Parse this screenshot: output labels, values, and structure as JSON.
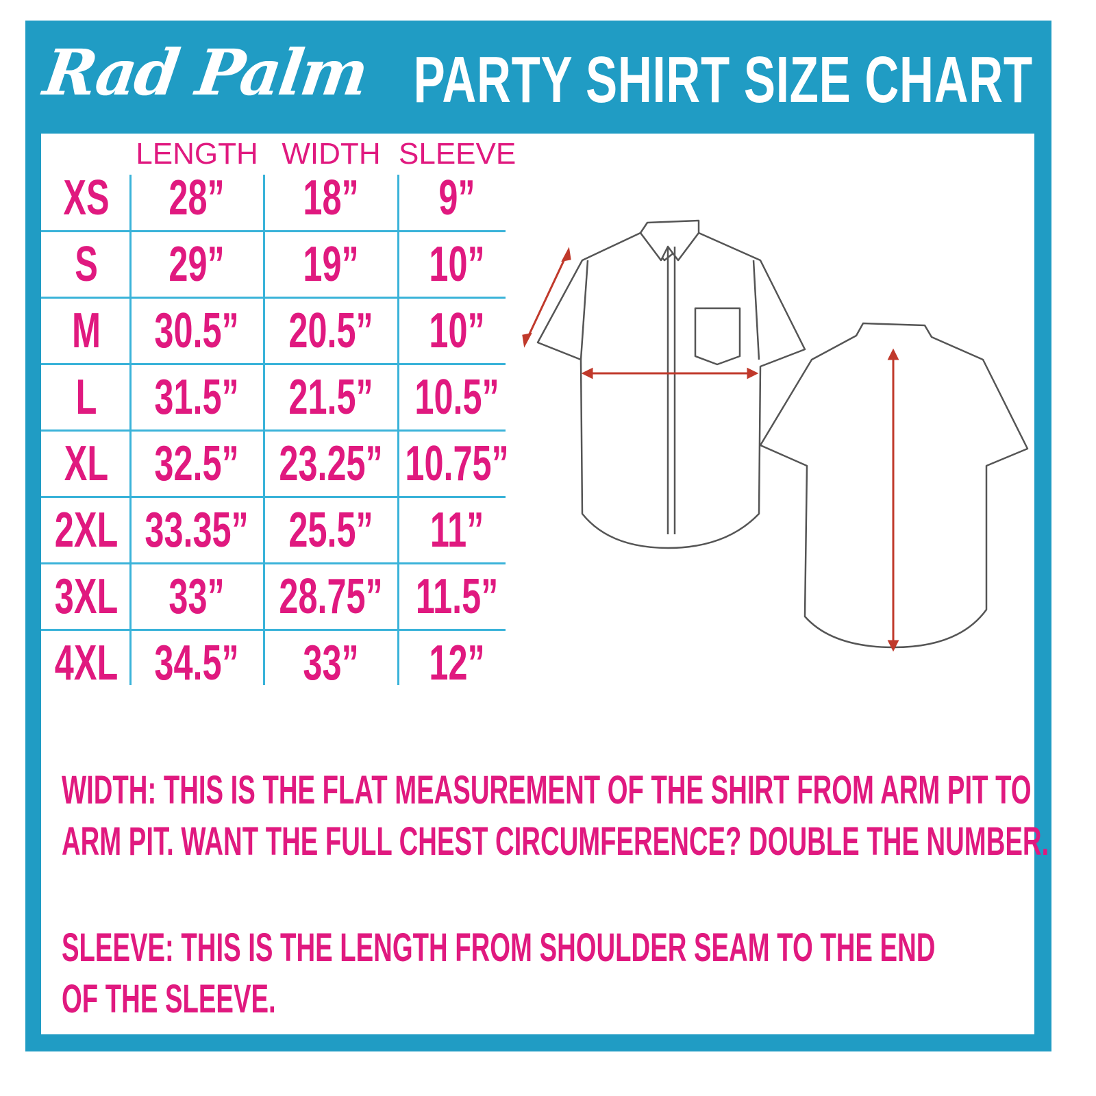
{
  "brand": "Rad Palm",
  "title": "PARTY SHIRT SIZE CHART",
  "table": {
    "headers": [
      "LENGTH",
      "WIDTH",
      "SLEEVE"
    ],
    "rows": [
      {
        "size": "XS",
        "length": "28”",
        "width": "18”",
        "sleeve": "9”"
      },
      {
        "size": "S",
        "length": "29”",
        "width": "19”",
        "sleeve": "10”"
      },
      {
        "size": "M",
        "length": "30.5”",
        "width": "20.5”",
        "sleeve": "10”"
      },
      {
        "size": "L",
        "length": "31.5”",
        "width": "21.5”",
        "sleeve": "10.5”"
      },
      {
        "size": "XL",
        "length": "32.5”",
        "width": "23.25”",
        "sleeve": "10.75”"
      },
      {
        "size": "2XL",
        "length": "33.35”",
        "width": "25.5”",
        "sleeve": "11”"
      },
      {
        "size": "3XL",
        "length": "33”",
        "width": "28.75”",
        "sleeve": "11.5”"
      },
      {
        "size": "4XL",
        "length": "34.5”",
        "width": "33”",
        "sleeve": "12”"
      }
    ]
  },
  "notes": {
    "width_line1": "WIDTH:  THIS IS THE FLAT MEASUREMENT OF THE SHIRT FROM ARM PIT TO",
    "width_line2": "ARM PIT.  WANT THE FULL CHEST CIRCUMFERENCE?  DOUBLE THE NUMBER.",
    "sleeve_line1": "SLEEVE:  THIS IS THE LENGTH FROM SHOULDER SEAM TO THE END",
    "sleeve_line2": "OF THE SLEEVE."
  },
  "colors": {
    "frame": "#209cc4",
    "text": "#e0197f",
    "grid": "#3ab3d9",
    "arrow": "#c0392b"
  },
  "icons": [
    "shirt-front-icon",
    "shirt-back-icon"
  ]
}
